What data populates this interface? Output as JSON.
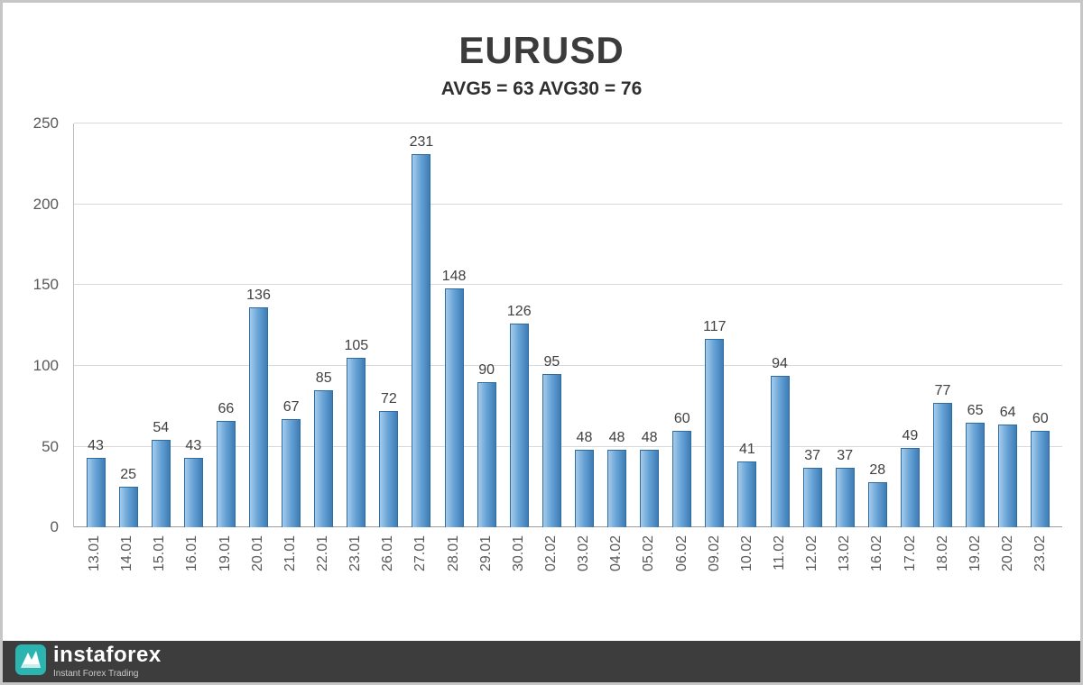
{
  "chart_data": {
    "type": "bar",
    "title": "EURUSD",
    "subtitle": "AVG5 = 63 AVG30 = 76",
    "categories": [
      "13.01",
      "14.01",
      "15.01",
      "16.01",
      "19.01",
      "20.01",
      "21.01",
      "22.01",
      "23.01",
      "26.01",
      "27.01",
      "28.01",
      "29.01",
      "30.01",
      "02.02",
      "03.02",
      "04.02",
      "05.02",
      "06.02",
      "09.02",
      "10.02",
      "11.02",
      "12.02",
      "13.02",
      "16.02",
      "17.02",
      "18.02",
      "19.02",
      "20.02",
      "23.02"
    ],
    "values": [
      43,
      25,
      54,
      43,
      66,
      136,
      67,
      85,
      105,
      72,
      231,
      148,
      90,
      126,
      95,
      48,
      48,
      48,
      60,
      117,
      41,
      94,
      37,
      37,
      28,
      49,
      77,
      65,
      64,
      60
    ],
    "ylim": [
      0,
      250
    ],
    "yticks": [
      0,
      50,
      100,
      150,
      200,
      250
    ],
    "grid": true,
    "legend": "none",
    "data_labels": true,
    "bar_color": "#5b9bd5",
    "bar_border_color": "#2e6da4",
    "gridline_color": "#d9d9d9"
  },
  "footer": {
    "brand": "instaforex",
    "tagline": "Instant Forex Trading"
  }
}
